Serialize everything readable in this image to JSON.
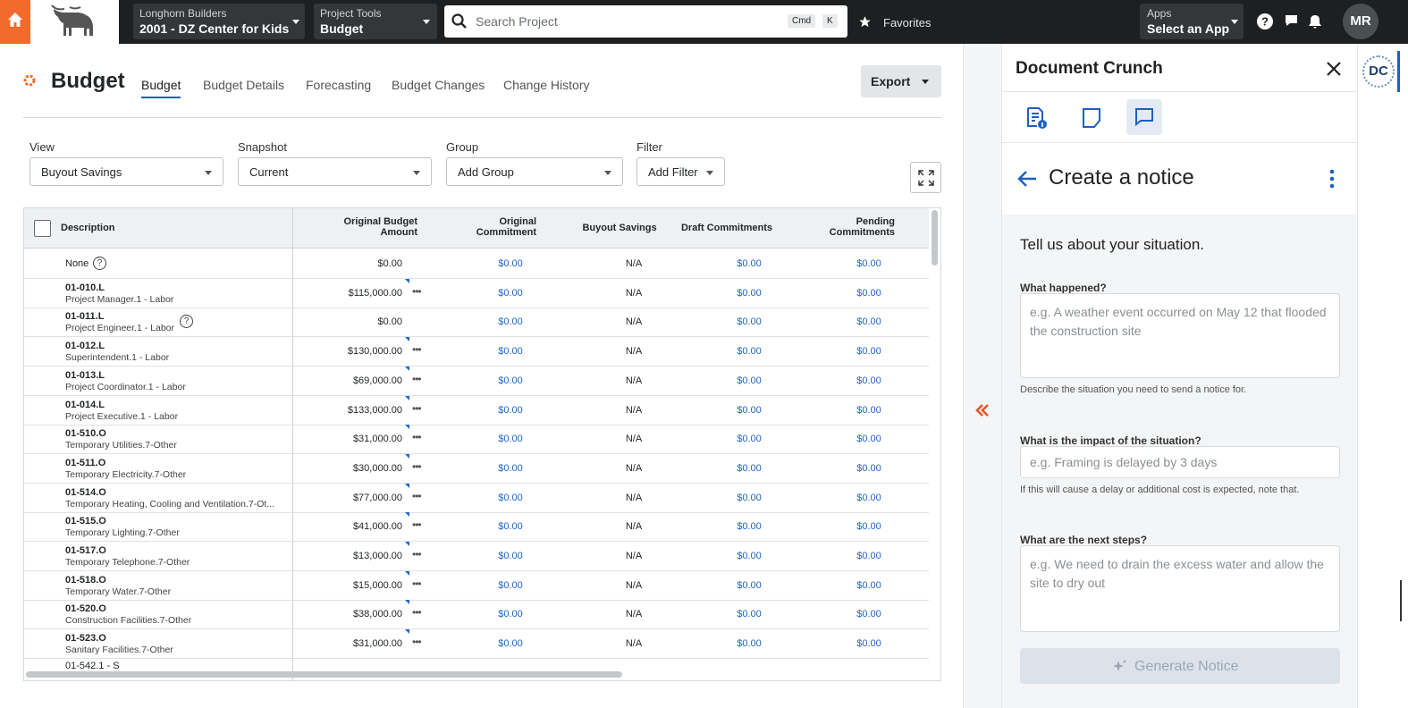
{
  "nav": {
    "company": "Longhorn Builders",
    "project": "2001 - DZ Center for Kids",
    "tools_label": "Project Tools",
    "tools_value": "Budget",
    "search_placeholder": "Search Project",
    "shortcut": [
      "Cmd",
      "K"
    ],
    "favorites": "Favorites",
    "apps_label": "Apps",
    "apps_value": "Select an App",
    "avatar": "MR"
  },
  "page": {
    "title": "Budget",
    "tabs": [
      "Budget",
      "Budget Details",
      "Forecasting",
      "Budget Changes",
      "Change History"
    ],
    "active_tab": 0,
    "export": "Export"
  },
  "filters": [
    {
      "label": "View",
      "value": "Buyout Savings"
    },
    {
      "label": "Snapshot",
      "value": "Current"
    },
    {
      "label": "Group",
      "value": "Add Group"
    },
    {
      "label": "Filter",
      "value": "Add Filter"
    }
  ],
  "table": {
    "columns": [
      "Description",
      "Original Budget Amount",
      "Original Commitment",
      "Buyout Savings",
      "Draft Commitments",
      "Pending Commitments"
    ],
    "rows": [
      {
        "code": "None",
        "help_icon": true,
        "cells": [
          "$0.00",
          "$0.00",
          "N/A",
          "$0.00",
          "$0.00"
        ]
      },
      {
        "code": "01-010.L",
        "name": "Project Manager.1 - Labor",
        "cells": [
          "$115,000.00",
          "$0.00",
          "N/A",
          "$0.00",
          "$0.00"
        ]
      },
      {
        "code": "01-011.L",
        "name": "Project Engineer.1 - Labor",
        "help_icon": true,
        "cells": [
          "$0.00",
          "$0.00",
          "N/A",
          "$0.00",
          "$0.00"
        ]
      },
      {
        "code": "01-012.L",
        "name": "Superintendent.1 - Labor",
        "cells": [
          "$130,000.00",
          "$0.00",
          "N/A",
          "$0.00",
          "$0.00"
        ]
      },
      {
        "code": "01-013.L",
        "name": "Project Coordinator.1 - Labor",
        "cells": [
          "$69,000.00",
          "$0.00",
          "N/A",
          "$0.00",
          "$0.00"
        ]
      },
      {
        "code": "01-014.L",
        "name": "Project Executive.1 - Labor",
        "cells": [
          "$133,000.00",
          "$0.00",
          "N/A",
          "$0.00",
          "$0.00"
        ]
      },
      {
        "code": "01-510.O",
        "name": "Temporary Utilities.7-Other",
        "cells": [
          "$31,000.00",
          "$0.00",
          "N/A",
          "$0.00",
          "$0.00"
        ]
      },
      {
        "code": "01-511.O",
        "name": "Temporary Electricity.7-Other",
        "cells": [
          "$30,000.00",
          "$0.00",
          "N/A",
          "$0.00",
          "$0.00"
        ]
      },
      {
        "code": "01-514.O",
        "name": "Temporary Heating, Cooling and Ventilation.7-Ot...",
        "cells": [
          "$77,000.00",
          "$0.00",
          "N/A",
          "$0.00",
          "$0.00"
        ]
      },
      {
        "code": "01-515.O",
        "name": "Temporary Lighting.7-Other",
        "cells": [
          "$41,000.00",
          "$0.00",
          "N/A",
          "$0.00",
          "$0.00"
        ]
      },
      {
        "code": "01-517.O",
        "name": "Temporary Telephone.7-Other",
        "cells": [
          "$13,000.00",
          "$0.00",
          "N/A",
          "$0.00",
          "$0.00"
        ]
      },
      {
        "code": "01-518.O",
        "name": "Temporary Water.7-Other",
        "cells": [
          "$15,000.00",
          "$0.00",
          "N/A",
          "$0.00",
          "$0.00"
        ]
      },
      {
        "code": "01-520.O",
        "name": "Construction Facilities.7-Other",
        "cells": [
          "$38,000.00",
          "$0.00",
          "N/A",
          "$0.00",
          "$0.00"
        ]
      },
      {
        "code": "01-523.O",
        "name": "Sanitary Facilities.7-Other",
        "cells": [
          "$31,000.00",
          "$0.00",
          "N/A",
          "$0.00",
          "$0.00"
        ]
      },
      {
        "code": "01-542.1 - S"
      }
    ]
  },
  "panel": {
    "title": "Document Crunch",
    "heading": "Create a notice",
    "intro": "Tell us about your situation.",
    "fields": [
      {
        "label": "What happened?",
        "placeholder": "e.g. A weather event occurred on May 12 that flooded the construction site",
        "help": "Describe the situation you need to send a notice for."
      },
      {
        "label": "What is the impact of the situation?",
        "placeholder": "e.g. Framing is delayed by 3 days",
        "help": "If this will cause a delay or additional cost is expected, note that."
      },
      {
        "label": "What are the next steps?",
        "placeholder": "e.g. We need to drain the excess water and allow the site to dry out"
      }
    ],
    "button": "Generate Notice",
    "rail_badge": "DC"
  }
}
